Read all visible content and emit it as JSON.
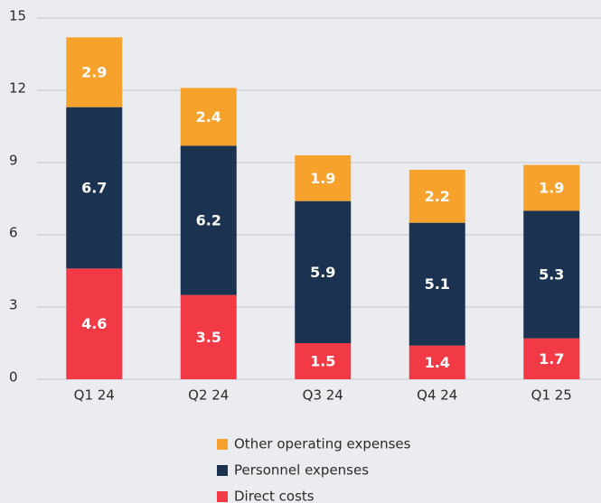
{
  "chart_data": {
    "type": "stacked_bar",
    "categories": [
      "Q1 24",
      "Q2 24",
      "Q3 24",
      "Q4 24",
      "Q1 25"
    ],
    "series": [
      {
        "name": "Direct costs",
        "color": "#f23a46",
        "values": [
          4.6,
          3.5,
          1.5,
          1.4,
          1.7
        ]
      },
      {
        "name": "Personnel expenses",
        "color": "#1b3350",
        "values": [
          6.7,
          6.2,
          5.9,
          5.1,
          5.3
        ]
      },
      {
        "name": "Other operating expenses",
        "color": "#f8a22e",
        "values": [
          2.9,
          2.4,
          1.9,
          2.2,
          1.9
        ]
      }
    ],
    "ylim": [
      0,
      15
    ],
    "yticks": [
      0,
      3,
      6,
      9,
      12,
      15
    ],
    "grid": true,
    "legend": "bottom"
  }
}
